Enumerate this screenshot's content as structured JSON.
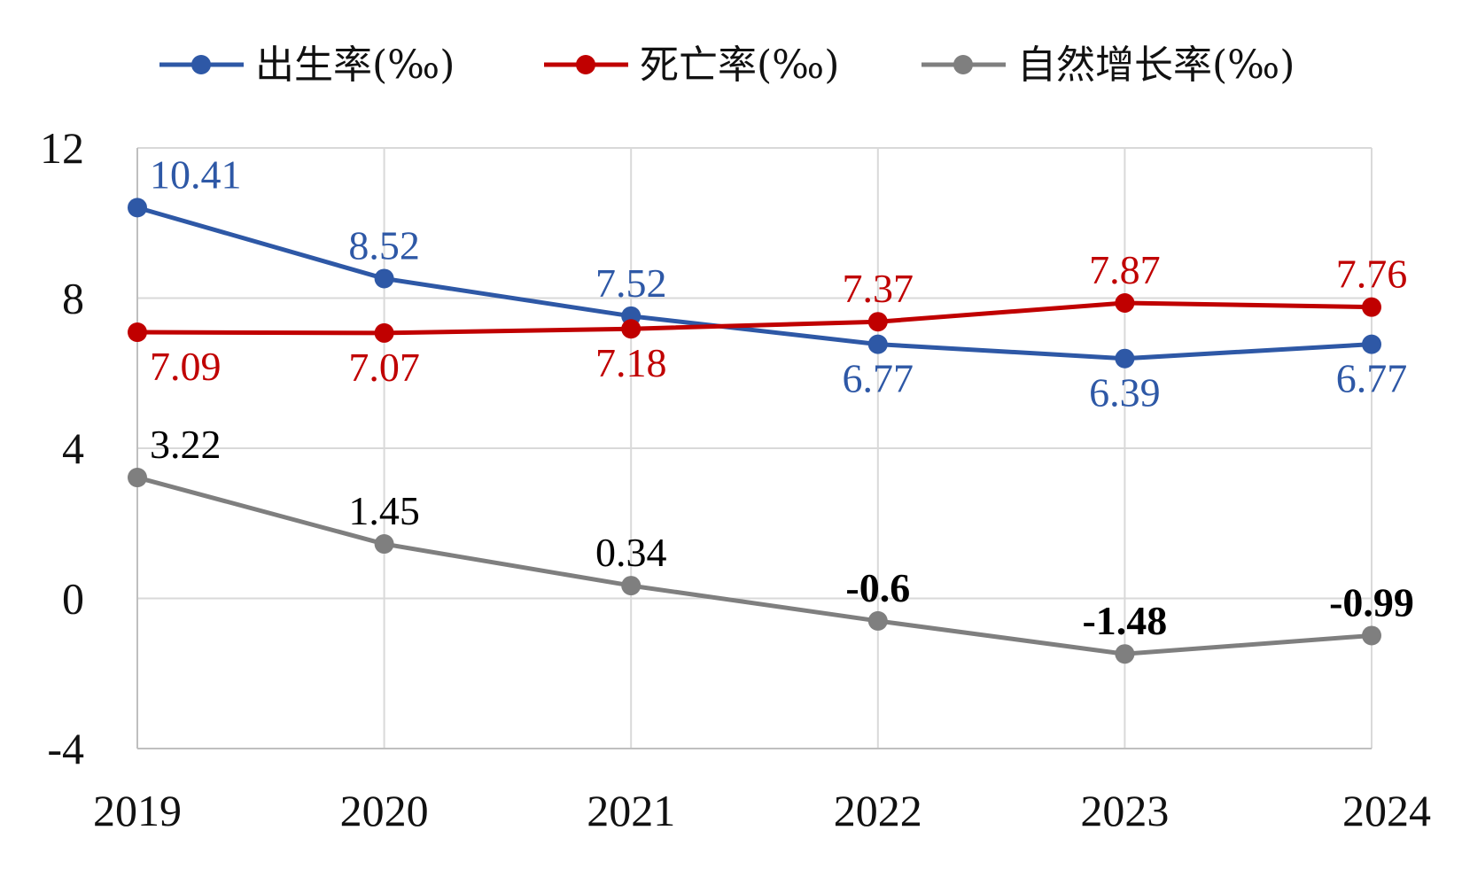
{
  "chart_data": {
    "type": "line",
    "x": [
      "2019",
      "2020",
      "2021",
      "2022",
      "2023",
      "2024"
    ],
    "ylim": [
      -4,
      12
    ],
    "yticks": [
      "12",
      "8",
      "4",
      "0",
      "-4"
    ],
    "grid": true,
    "legend_position": "top",
    "series": [
      {
        "name": "出生率(‰)",
        "color": "#2E58A6",
        "values": [
          10.41,
          8.52,
          7.52,
          6.77,
          6.39,
          6.77
        ],
        "labels": [
          "10.41",
          "8.52",
          "7.52",
          "6.77",
          "6.39",
          "6.77"
        ],
        "label_bold": [
          false,
          false,
          false,
          false,
          false,
          false
        ],
        "label_pos": [
          "above",
          "above",
          "above",
          "below",
          "below",
          "below"
        ]
      },
      {
        "name": "死亡率(‰)",
        "color": "#C00000",
        "values": [
          7.09,
          7.07,
          7.18,
          7.37,
          7.87,
          7.76
        ],
        "labels": [
          "7.09",
          "7.07",
          "7.18",
          "7.37",
          "7.87",
          "7.76"
        ],
        "label_bold": [
          false,
          false,
          false,
          false,
          false,
          false
        ],
        "label_pos": [
          "below",
          "below",
          "below",
          "above",
          "above",
          "above"
        ]
      },
      {
        "name": "自然增长率(‰)",
        "color": "#7F7F7F",
        "values": [
          3.22,
          1.45,
          0.34,
          -0.6,
          -1.48,
          -0.99
        ],
        "labels": [
          "3.22",
          "1.45",
          "0.34",
          "-0.6",
          "-1.48",
          "-0.99"
        ],
        "label_bold": [
          false,
          false,
          false,
          true,
          true,
          true
        ],
        "label_pos": [
          "above",
          "above",
          "above",
          "above",
          "above",
          "above"
        ],
        "label_color": "#000000"
      }
    ]
  }
}
